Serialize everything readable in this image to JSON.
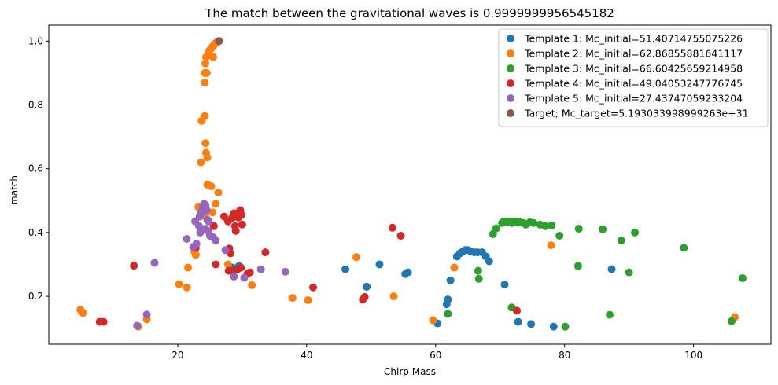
{
  "chart_data": {
    "type": "scatter",
    "title": "The match between the gravitational waves is 0.9999999956545182",
    "xlabel": "Chirp Mass",
    "ylabel": "match",
    "xlim": [
      0,
      112
    ],
    "ylim": [
      0.05,
      1.05
    ],
    "xticks": [
      20,
      40,
      60,
      80,
      100
    ],
    "yticks": [
      0.2,
      0.4,
      0.6,
      0.8,
      1.0
    ],
    "xtick_labels": [
      "20",
      "40",
      "60",
      "80",
      "100"
    ],
    "ytick_labels": [
      "0.2",
      "0.4",
      "0.6",
      "0.8",
      "1.0"
    ],
    "grid": false,
    "legend_position": "top-right",
    "series": [
      {
        "name": "Template 1: Mc_initial=51.40714755075226",
        "color": "#1f77b4",
        "points": [
          [
            46,
            0.285
          ],
          [
            49.3,
            0.23
          ],
          [
            51.3,
            0.3
          ],
          [
            55.3,
            0.27
          ],
          [
            55.7,
            0.275
          ],
          [
            60.3,
            0.115
          ],
          [
            61.7,
            0.175
          ],
          [
            61.9,
            0.19
          ],
          [
            62.3,
            0.25
          ],
          [
            63.3,
            0.325
          ],
          [
            63.8,
            0.335
          ],
          [
            64.2,
            0.34
          ],
          [
            64.6,
            0.345
          ],
          [
            65.0,
            0.345
          ],
          [
            65.5,
            0.34
          ],
          [
            66.0,
            0.338
          ],
          [
            66.5,
            0.338
          ],
          [
            67.2,
            0.338
          ],
          [
            67.8,
            0.325
          ],
          [
            68.3,
            0.31
          ],
          [
            70.7,
            0.237
          ],
          [
            72.8,
            0.12
          ],
          [
            74.8,
            0.113
          ],
          [
            78.3,
            0.105
          ],
          [
            87.3,
            0.285
          ],
          [
            29.5,
            0.295
          ],
          [
            28.5,
            0.29
          ]
        ]
      },
      {
        "name": "Template 2: Mc_initial=62.86855881641117",
        "color": "#ff7f0e",
        "points": [
          [
            4.9,
            0.158
          ],
          [
            5.3,
            0.148
          ],
          [
            13.9,
            0.105
          ],
          [
            15.2,
            0.128
          ],
          [
            20.2,
            0.238
          ],
          [
            21.4,
            0.228
          ],
          [
            21.6,
            0.29
          ],
          [
            22.6,
            0.34
          ],
          [
            22.8,
            0.33
          ],
          [
            23.2,
            0.48
          ],
          [
            23.6,
            0.62
          ],
          [
            23.7,
            0.75
          ],
          [
            24.2,
            0.765
          ],
          [
            24.2,
            0.87
          ],
          [
            24.2,
            0.9
          ],
          [
            24.3,
            0.68
          ],
          [
            24.4,
            0.65
          ],
          [
            24.5,
            0.9
          ],
          [
            24.6,
            0.635
          ],
          [
            24.6,
            0.55
          ],
          [
            24.3,
            0.93
          ],
          [
            24.4,
            0.95
          ],
          [
            24.7,
            0.96
          ],
          [
            24.9,
            0.97
          ],
          [
            25.1,
            0.975
          ],
          [
            25.3,
            0.98
          ],
          [
            25.5,
            0.985
          ],
          [
            25.7,
            0.99
          ],
          [
            25.9,
            0.993
          ],
          [
            26.1,
            0.997
          ],
          [
            26.4,
            1.0
          ],
          [
            25.2,
            0.545
          ],
          [
            25.4,
            0.463
          ],
          [
            25.5,
            0.95
          ],
          [
            25.9,
            0.49
          ],
          [
            26.3,
            0.525
          ],
          [
            24.3,
            0.45
          ],
          [
            27.8,
            0.3
          ],
          [
            31.5,
            0.235
          ],
          [
            37.8,
            0.195
          ],
          [
            40.2,
            0.188
          ],
          [
            47.7,
            0.323
          ],
          [
            53.5,
            0.2
          ],
          [
            59.6,
            0.125
          ],
          [
            62.9,
            0.29
          ],
          [
            77.9,
            0.36
          ],
          [
            106.4,
            0.135
          ]
        ]
      },
      {
        "name": "Template 3: Mc_initial=66.60425659214958",
        "color": "#2ca02c",
        "points": [
          [
            61.9,
            0.145
          ],
          [
            66.6,
            0.28
          ],
          [
            66.7,
            0.255
          ],
          [
            68.9,
            0.395
          ],
          [
            69.4,
            0.413
          ],
          [
            70.3,
            0.43
          ],
          [
            70.6,
            0.435
          ],
          [
            71.0,
            0.433
          ],
          [
            71.4,
            0.435
          ],
          [
            71.8,
            0.43
          ],
          [
            72.2,
            0.435
          ],
          [
            72.6,
            0.432
          ],
          [
            73.0,
            0.433
          ],
          [
            73.6,
            0.43
          ],
          [
            74.0,
            0.425
          ],
          [
            74.6,
            0.432
          ],
          [
            75.2,
            0.43
          ],
          [
            76.2,
            0.425
          ],
          [
            77.0,
            0.42
          ],
          [
            78.0,
            0.422
          ],
          [
            79.2,
            0.39
          ],
          [
            82.1,
            0.295
          ],
          [
            82.2,
            0.412
          ],
          [
            85.9,
            0.41
          ],
          [
            88.8,
            0.375
          ],
          [
            90.0,
            0.275
          ],
          [
            90.9,
            0.4
          ],
          [
            98.5,
            0.352
          ],
          [
            105.9,
            0.122
          ],
          [
            107.6,
            0.257
          ],
          [
            71.8,
            0.165
          ],
          [
            80.1,
            0.105
          ],
          [
            87.0,
            0.142
          ]
        ]
      },
      {
        "name": "Template 4: Mc_initial=49.04053247776745",
        "color": "#d62728",
        "points": [
          [
            7.9,
            0.12
          ],
          [
            8.5,
            0.12
          ],
          [
            13.2,
            0.296
          ],
          [
            22.8,
            0.352
          ],
          [
            25.6,
            0.42
          ],
          [
            25.9,
            0.3
          ],
          [
            27.2,
            0.45
          ],
          [
            27.8,
            0.435
          ],
          [
            28.0,
            0.35
          ],
          [
            28.2,
            0.335
          ],
          [
            28.4,
            0.445
          ],
          [
            28.7,
            0.46
          ],
          [
            28.9,
            0.42
          ],
          [
            29.0,
            0.405
          ],
          [
            29.2,
            0.46
          ],
          [
            29.4,
            0.447
          ],
          [
            29.7,
            0.47
          ],
          [
            30.0,
            0.425
          ],
          [
            29.9,
            0.455
          ],
          [
            27.9,
            0.28
          ],
          [
            28.5,
            0.278
          ],
          [
            29.3,
            0.285
          ],
          [
            29.8,
            0.29
          ],
          [
            30.8,
            0.27
          ],
          [
            31.2,
            0.275
          ],
          [
            33.6,
            0.338
          ],
          [
            41.0,
            0.228
          ],
          [
            48.7,
            0.19
          ],
          [
            49.0,
            0.198
          ],
          [
            53.3,
            0.415
          ],
          [
            54.6,
            0.39
          ],
          [
            72.6,
            0.155
          ]
        ]
      },
      {
        "name": "Template 5: Mc_initial=27.43747059233204",
        "color": "#9467bd",
        "points": [
          [
            13.7,
            0.108
          ],
          [
            15.2,
            0.143
          ],
          [
            16.4,
            0.305
          ],
          [
            21.4,
            0.38
          ],
          [
            22.4,
            0.355
          ],
          [
            22.7,
            0.435
          ],
          [
            22.9,
            0.365
          ],
          [
            23.3,
            0.42
          ],
          [
            23.4,
            0.45
          ],
          [
            23.6,
            0.46
          ],
          [
            23.8,
            0.47
          ],
          [
            23.9,
            0.48
          ],
          [
            24.1,
            0.49
          ],
          [
            24.3,
            0.485
          ],
          [
            24.5,
            0.47
          ],
          [
            24.6,
            0.44
          ],
          [
            24.8,
            0.435
          ],
          [
            24.3,
            0.412
          ],
          [
            24.7,
            0.405
          ],
          [
            25.0,
            0.39
          ],
          [
            25.5,
            0.385
          ],
          [
            25.9,
            0.375
          ],
          [
            23.5,
            0.4
          ],
          [
            27.4,
            0.345
          ],
          [
            28.7,
            0.262
          ],
          [
            30.3,
            0.258
          ],
          [
            32.9,
            0.285
          ],
          [
            36.7,
            0.277
          ]
        ]
      },
      {
        "name": "Target; Mc_target=5.193033998999263e+31",
        "color": "#8c564b",
        "points": [
          [
            26.4,
            1.0
          ]
        ]
      }
    ]
  }
}
